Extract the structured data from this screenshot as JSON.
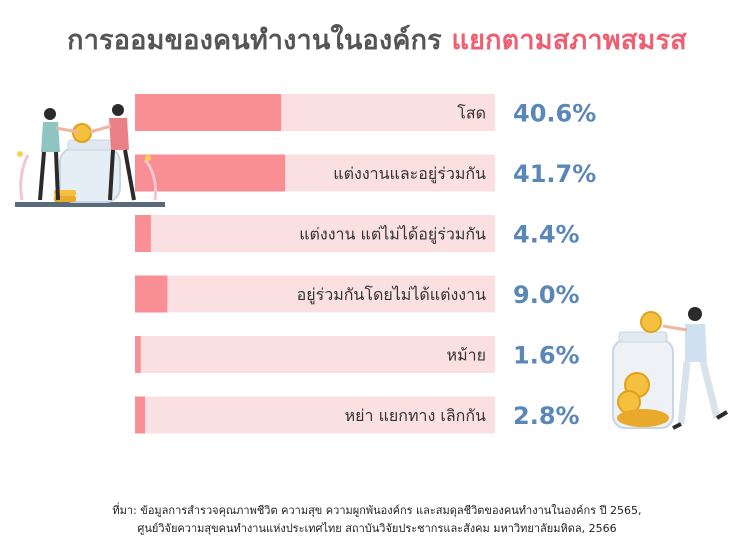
{
  "title": {
    "part1": "การออมของคนทำงานในองค์กร",
    "part2": "แยกตามสภาพสมรส"
  },
  "colors": {
    "bar_fill": "#f98f95",
    "bar_track": "#fbe0e2",
    "value_text": "#5a87b8",
    "title_accent": "#ef5f72",
    "title_main": "#555555"
  },
  "chart_data": {
    "type": "bar",
    "orientation": "horizontal",
    "categories": [
      "โสด",
      "แต่งงานและอยู่ร่วมกัน",
      "แต่งงาน แต่ไม่ได้อยู่ร่วมกัน",
      "อยู่ร่วมกันโดยไม่ได้แต่งงาน",
      "หม้าย",
      "หย่า แยกทาง เลิกกัน"
    ],
    "values": [
      40.6,
      41.7,
      4.4,
      9.0,
      1.6,
      2.8
    ],
    "value_labels": [
      "40.6%",
      "41.7%",
      "4.4%",
      "9.0%",
      "1.6%",
      "2.8%"
    ],
    "xlim": [
      0,
      100
    ],
    "grid": false,
    "legend": "none"
  },
  "source": {
    "line1": "ที่มา: ข้อมูลการสำรวจคุณภาพชีวิต ความสุข ความผูกพันองค์กร และสมดุลชีวิตของคนทำงานในองค์กร ปี 2565,",
    "line2": "ศูนย์วิจัยความสุขคนทำงานแห่งประเทศไทย สถาบันวิจัยประชากรและสังคม มหาวิทยาลัยมหิดล, 2566"
  }
}
